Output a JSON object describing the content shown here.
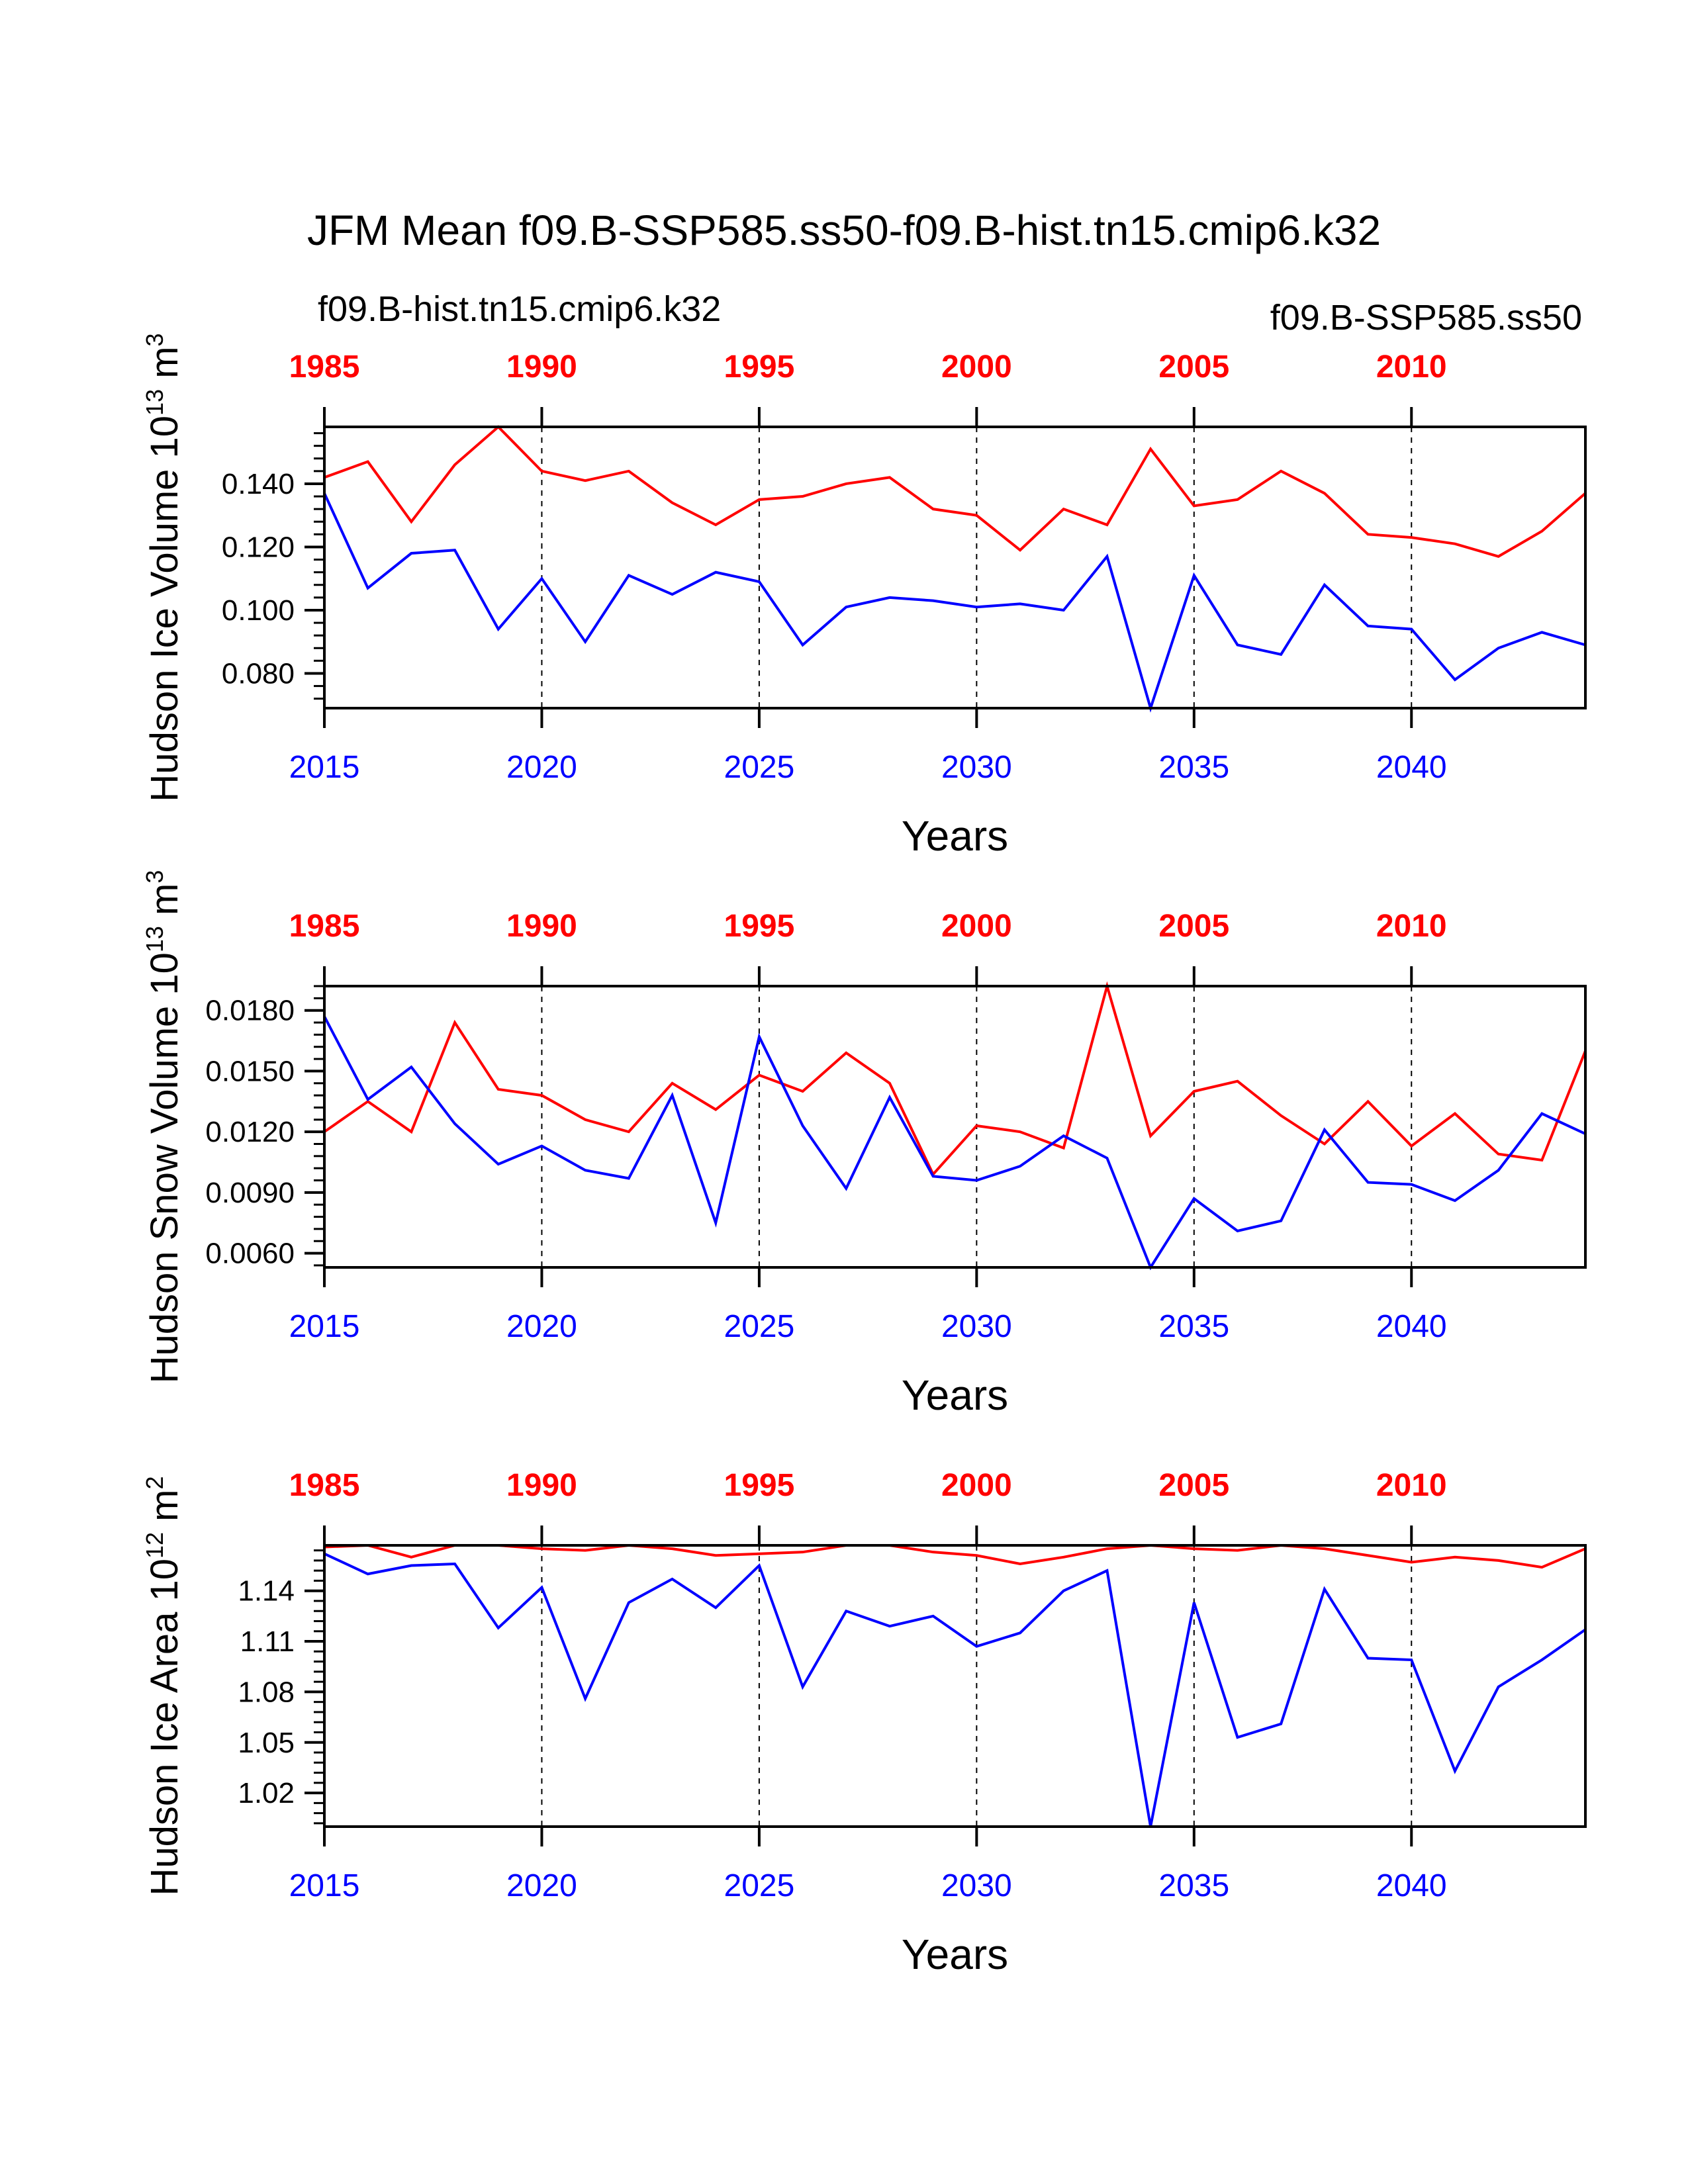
{
  "title": "JFM Mean f09.B-SSP585.ss50-f09.B-hist.tn15.cmip6.k32",
  "legend": {
    "hist_label": "f09.B-hist.tn15.cmip6.k32",
    "ssp_label": "f09.B-SSP585.ss50"
  },
  "colors": {
    "hist": "#ff0000",
    "ssp": "#0000ff",
    "axis": "#000000"
  },
  "x_axis_label": "Years",
  "chart_data": [
    {
      "type": "line",
      "ylabel_main": "Hudson Ice Volume 10",
      "ylabel_exp": "13",
      "ylabel_unit": " m",
      "ylabel_unit_exp": "3",
      "top_ticks": [
        "1985",
        "1990",
        "1995",
        "2000",
        "2005",
        "2010"
      ],
      "bottom_ticks": [
        "2015",
        "2020",
        "2025",
        "2030",
        "2035",
        "2040"
      ],
      "y_ticks": [
        "0.080",
        "0.100",
        "0.120",
        "0.140"
      ],
      "y_tick_values": [
        0.08,
        0.1,
        0.12,
        0.14
      ],
      "ylim": [
        0.069,
        0.158
      ],
      "x": [
        2015,
        2016,
        2017,
        2018,
        2019,
        2020,
        2021,
        2022,
        2023,
        2024,
        2025,
        2026,
        2027,
        2028,
        2029,
        2030,
        2031,
        2032,
        2033,
        2034,
        2035,
        2036,
        2037,
        2038,
        2039,
        2040,
        2041,
        2042,
        2043,
        2044
      ],
      "xlim": [
        2015,
        2044
      ],
      "series": [
        {
          "name": "f09.B-hist.tn15.cmip6.k32",
          "values": [
            0.142,
            0.147,
            0.128,
            0.146,
            0.158,
            0.144,
            0.141,
            0.144,
            0.134,
            0.127,
            0.135,
            0.136,
            0.14,
            0.142,
            0.132,
            0.13,
            0.119,
            0.132,
            0.127,
            0.151,
            0.133,
            0.135,
            0.144,
            0.137,
            0.124,
            0.123,
            0.121,
            0.117,
            0.125,
            0.137
          ]
        },
        {
          "name": "f09.B-SSP585.ss50",
          "values": [
            0.137,
            0.107,
            0.118,
            0.119,
            0.094,
            0.11,
            0.09,
            0.111,
            0.105,
            0.112,
            0.109,
            0.089,
            0.101,
            0.104,
            0.103,
            0.101,
            0.102,
            0.1,
            0.117,
            0.069,
            0.111,
            0.089,
            0.086,
            0.108,
            0.095,
            0.094,
            0.078,
            0.088,
            0.093,
            0.089
          ]
        }
      ]
    },
    {
      "type": "line",
      "ylabel_main": "Hudson Snow Volume 10",
      "ylabel_exp": "13",
      "ylabel_unit": " m",
      "ylabel_unit_exp": "3",
      "top_ticks": [
        "1985",
        "1990",
        "1995",
        "2000",
        "2005",
        "2010"
      ],
      "bottom_ticks": [
        "2015",
        "2020",
        "2025",
        "2030",
        "2035",
        "2040"
      ],
      "y_ticks": [
        "0.0060",
        "0.0090",
        "0.0120",
        "0.0150",
        "0.0180"
      ],
      "y_tick_values": [
        0.006,
        0.009,
        0.012,
        0.015,
        0.018
      ],
      "ylim": [
        0.0053,
        0.0192
      ],
      "x": [
        2015,
        2016,
        2017,
        2018,
        2019,
        2020,
        2021,
        2022,
        2023,
        2024,
        2025,
        2026,
        2027,
        2028,
        2029,
        2030,
        2031,
        2032,
        2033,
        2034,
        2035,
        2036,
        2037,
        2038,
        2039,
        2040,
        2041,
        2042,
        2043,
        2044
      ],
      "xlim": [
        2015,
        2044
      ],
      "series": [
        {
          "name": "f09.B-hist.tn15.cmip6.k32",
          "values": [
            0.012,
            0.0135,
            0.012,
            0.0174,
            0.0141,
            0.0138,
            0.0126,
            0.012,
            0.0144,
            0.0131,
            0.0148,
            0.014,
            0.0159,
            0.0144,
            0.0099,
            0.0123,
            0.012,
            0.0112,
            0.0192,
            0.0118,
            0.014,
            0.0145,
            0.0128,
            0.0114,
            0.0135,
            0.0113,
            0.0129,
            0.0109,
            0.0106,
            0.016
          ]
        },
        {
          "name": "f09.B-SSP585.ss50",
          "values": [
            0.0177,
            0.0136,
            0.0152,
            0.0124,
            0.0104,
            0.0113,
            0.0101,
            0.0097,
            0.0138,
            0.0075,
            0.0167,
            0.0123,
            0.0092,
            0.0137,
            0.0098,
            0.0096,
            0.0103,
            0.0118,
            0.0107,
            0.0053,
            0.0087,
            0.0071,
            0.0076,
            0.0121,
            0.0095,
            0.0094,
            0.0086,
            0.0101,
            0.0129,
            0.0119
          ]
        }
      ]
    },
    {
      "type": "line",
      "ylabel_main": "Hudson Ice Area 10",
      "ylabel_exp": "12",
      "ylabel_unit": " m",
      "ylabel_unit_exp": "2",
      "top_ticks": [
        "1985",
        "1990",
        "1995",
        "2000",
        "2005",
        "2010"
      ],
      "bottom_ticks": [
        "2015",
        "2020",
        "2025",
        "2030",
        "2035",
        "2040"
      ],
      "y_ticks": [
        "1.02",
        "1.05",
        "1.08",
        "1.11",
        "1.14"
      ],
      "y_tick_values": [
        1.02,
        1.05,
        1.08,
        1.11,
        1.14
      ],
      "ylim": [
        1.0,
        1.167
      ],
      "x": [
        2015,
        2016,
        2017,
        2018,
        2019,
        2020,
        2021,
        2022,
        2023,
        2024,
        2025,
        2026,
        2027,
        2028,
        2029,
        2030,
        2031,
        2032,
        2033,
        2034,
        2035,
        2036,
        2037,
        2038,
        2039,
        2040,
        2041,
        2042,
        2043,
        2044
      ],
      "xlim": [
        2015,
        2044
      ],
      "series": [
        {
          "name": "f09.B-hist.tn15.cmip6.k32",
          "values": [
            1.166,
            1.167,
            1.16,
            1.167,
            1.167,
            1.165,
            1.164,
            1.167,
            1.165,
            1.161,
            1.162,
            1.163,
            1.167,
            1.167,
            1.163,
            1.161,
            1.156,
            1.16,
            1.165,
            1.167,
            1.165,
            1.164,
            1.167,
            1.165,
            1.161,
            1.157,
            1.16,
            1.158,
            1.154,
            1.165
          ]
        },
        {
          "name": "f09.B-SSP585.ss50",
          "values": [
            1.162,
            1.15,
            1.155,
            1.156,
            1.118,
            1.142,
            1.076,
            1.133,
            1.147,
            1.13,
            1.155,
            1.083,
            1.128,
            1.119,
            1.125,
            1.107,
            1.115,
            1.14,
            1.152,
            1.0,
            1.133,
            1.053,
            1.061,
            1.141,
            1.1,
            1.099,
            1.033,
            1.083,
            1.099,
            1.117
          ]
        }
      ]
    }
  ]
}
